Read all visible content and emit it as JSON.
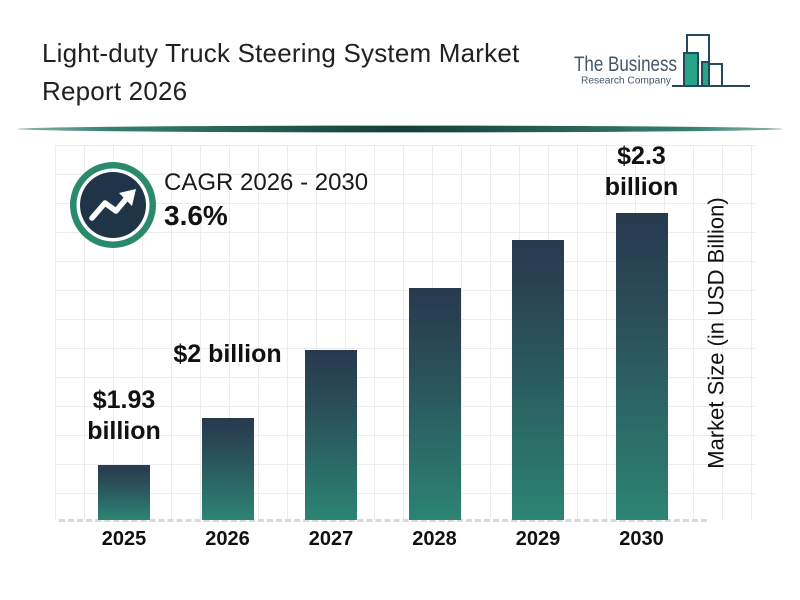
{
  "header": {
    "title_line1": "Light-duty Truck Steering System Market",
    "title_line2": "Report 2026",
    "logo": {
      "name": "The Business",
      "tagline": "Research Company",
      "icon": "bar-chart-skyline-icon"
    }
  },
  "cagr": {
    "label": "CAGR 2026 - 2030",
    "value": "3.6%",
    "icon": "trending-up-arrow-icon"
  },
  "chart_data": {
    "type": "bar",
    "title": "Light-duty Truck Steering System Market Report 2026",
    "categories": [
      "2025",
      "2026",
      "2027",
      "2028",
      "2029",
      "2030"
    ],
    "values": [
      1.93,
      2.0,
      2.1,
      2.19,
      2.26,
      2.3
    ],
    "bar_labels": [
      [
        "$1.93",
        "billion"
      ],
      [
        "$2 billion"
      ],
      [],
      [],
      [],
      [
        "$2.3",
        "billion"
      ]
    ],
    "labeled_values": {
      "2025": "$1.93 billion",
      "2026": "$2 billion",
      "2030": "$2.3 billion"
    },
    "xlabel": "",
    "ylabel": "Market Size (in USD Billion)",
    "ylim": [
      1.85,
      2.4
    ],
    "grid": true,
    "legend": false,
    "colors": {
      "bar_gradient_top": "#273a4e",
      "bar_gradient_bottom": "#2c8472",
      "grid": "#ececec",
      "baseline_dash": "#d9d9d9",
      "accent_teal": "#1d5f52",
      "badge_ring": "#2b8a6e",
      "badge_inner": "#203448",
      "logo_outline": "#24485c",
      "logo_green": "#2aa487",
      "logo_text": "#44566b"
    }
  }
}
